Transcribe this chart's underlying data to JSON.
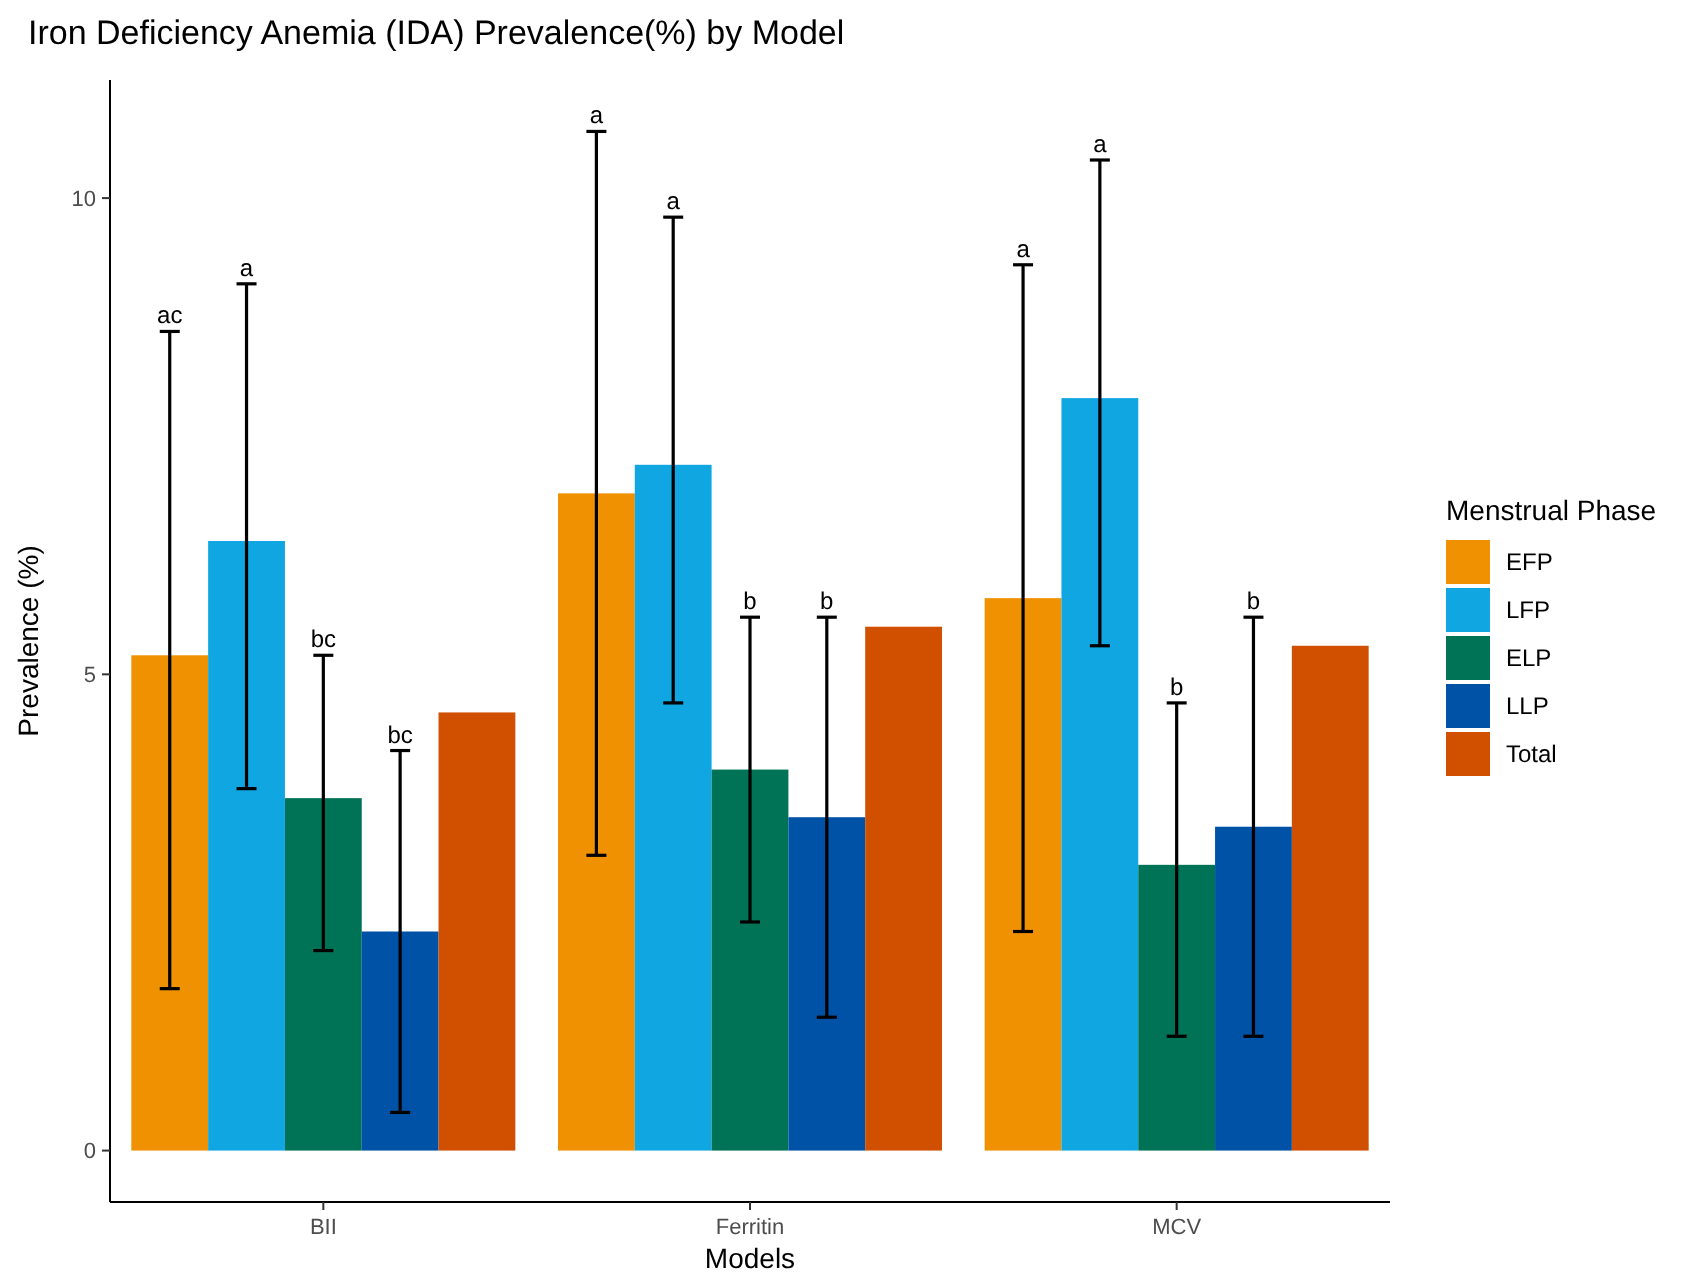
{
  "chart_data": {
    "type": "bar",
    "title": "Iron Deficiency Anemia (IDA) Prevalence(%) by Model",
    "xlabel": "Models",
    "ylabel": "Prevalence (%)",
    "legend_title": "Menstrual Phase",
    "legend": "right",
    "grid": false,
    "categories": [
      "BII",
      "Ferritin",
      "MCV"
    ],
    "ylim": [
      -0.54,
      11.24
    ],
    "yticks": [
      0,
      5,
      10
    ],
    "series": [
      {
        "name": "EFP",
        "color": "#ef9100",
        "values": [
          5.2,
          6.9,
          5.8
        ],
        "errors": [
          [
            1.7,
            8.6
          ],
          [
            3.1,
            10.7
          ],
          [
            2.3,
            9.3
          ]
        ]
      },
      {
        "name": "LFP",
        "color": "#0fa6e2",
        "values": [
          6.4,
          7.2,
          7.9
        ],
        "errors": [
          [
            3.8,
            9.1
          ],
          [
            4.7,
            9.8
          ],
          [
            5.3,
            10.4
          ]
        ]
      },
      {
        "name": "ELP",
        "color": "#007356",
        "values": [
          3.7,
          4.0,
          3.0
        ],
        "errors": [
          [
            2.1,
            5.2
          ],
          [
            2.4,
            5.6
          ],
          [
            1.2,
            4.7
          ]
        ]
      },
      {
        "name": "LLP",
        "color": "#0052a6",
        "values": [
          2.3,
          3.5,
          3.4
        ],
        "errors": [
          [
            0.4,
            4.2
          ],
          [
            1.4,
            5.6
          ],
          [
            1.2,
            5.6
          ]
        ]
      },
      {
        "name": "Total",
        "color": "#d05000",
        "values": [
          4.6,
          5.5,
          5.3
        ]
      }
    ],
    "annotations": [
      "ac",
      "a",
      "bc",
      "bc",
      "a",
      "a",
      "b",
      "b",
      "a",
      "a",
      "b",
      "b"
    ]
  }
}
